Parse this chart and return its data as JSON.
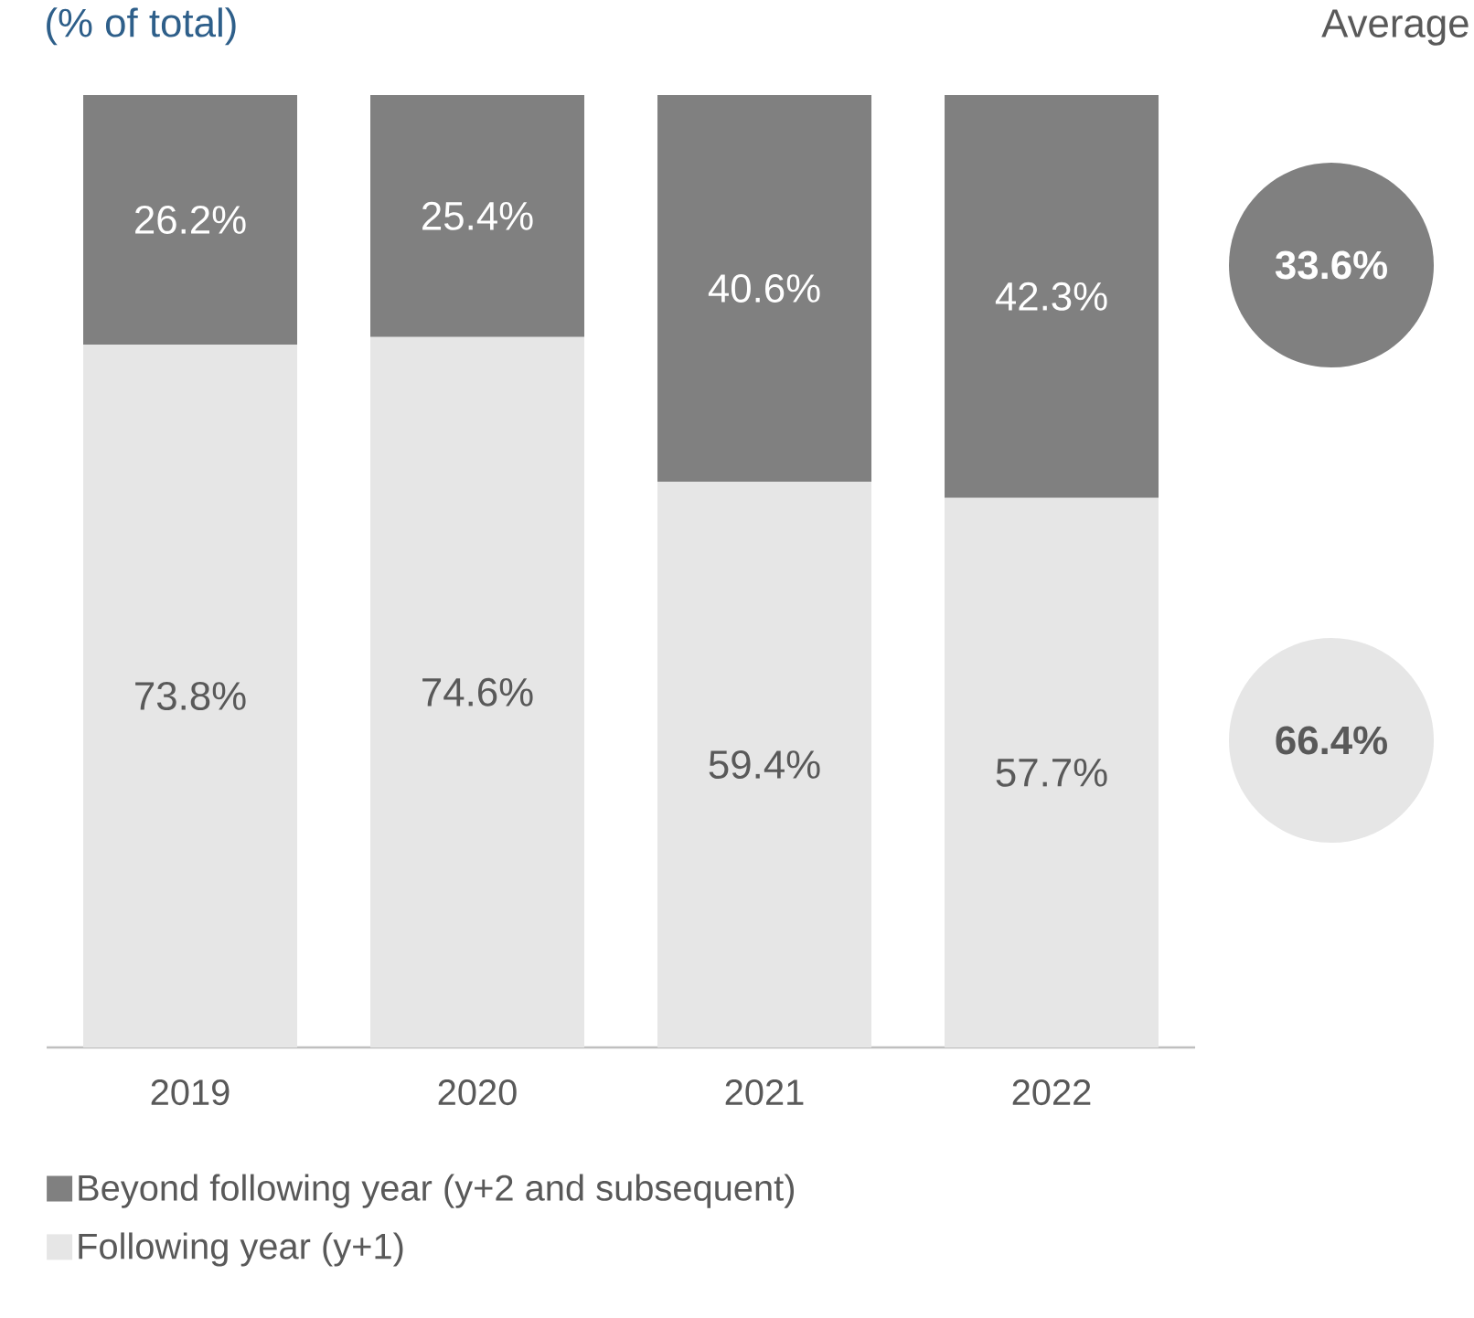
{
  "chart_data": {
    "type": "bar",
    "title": "(% of total)",
    "categories": [
      "2019",
      "2020",
      "2021",
      "2022"
    ],
    "stacked": true,
    "series": [
      {
        "name": "Following year (y+1)",
        "color": "#e6e6e6",
        "values": [
          73.8,
          74.6,
          59.4,
          57.7
        ],
        "value_labels": [
          "73.8%",
          "74.6%",
          "59.4%",
          "57.7%"
        ]
      },
      {
        "name": "Beyond following year (y+2 and subsequent)",
        "color": "#808080",
        "values": [
          26.2,
          25.4,
          40.6,
          42.3
        ],
        "value_labels": [
          "26.2%",
          "25.4%",
          "40.6%",
          "42.3%"
        ]
      }
    ],
    "ylim": [
      0,
      100
    ],
    "tick_labels": "x",
    "legend": "bottom",
    "annotations": [
      "Average",
      "33.6%",
      "66.4%"
    ]
  }
}
